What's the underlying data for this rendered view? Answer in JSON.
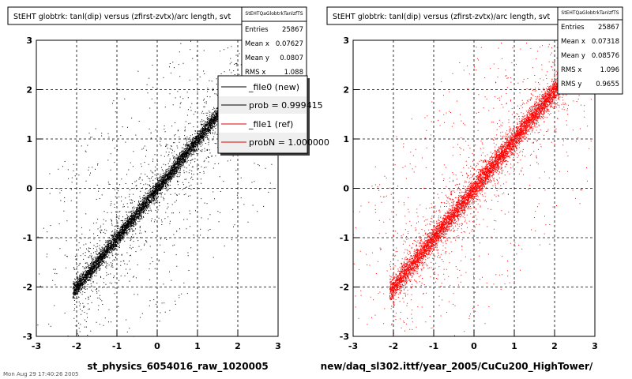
{
  "chart_data": [
    {
      "type": "scatter",
      "title": "StEHT globtrk: tanl(dip) versus (zfirst-zvtx)/arc length, svt",
      "xlabel": "st_physics_6054016_raw_1020005",
      "ylabel": "",
      "xlim": [
        -3,
        3
      ],
      "ylim": [
        -3,
        3
      ],
      "xticks": [
        "-3",
        "-2",
        "-1",
        "0",
        "1",
        "2",
        "3"
      ],
      "yticks": [
        "-3",
        "-2",
        "-1",
        "0",
        "1",
        "2",
        "3"
      ],
      "grid": true,
      "marker_color": "#000000",
      "stats": {
        "name": "StEHTQaGlobtrkTanlzfTS",
        "rows": [
          {
            "label": "Entries",
            "value": "25867"
          },
          {
            "label": "Mean x",
            "value": "0.07627"
          },
          {
            "label": "Mean y",
            "value": "0.0807"
          },
          {
            "label": "RMS x",
            "value": "1.088"
          }
        ]
      },
      "legend": {
        "position": "top-right",
        "entries": [
          {
            "label": "_file0 (new)",
            "color": "#000000"
          },
          {
            "label": "prob = 0.999415",
            "color": "#000000"
          },
          {
            "label": "_file1 (ref)",
            "color": "#dd0000"
          },
          {
            "label": "probN = 1.000000",
            "color": "#dd0000"
          }
        ]
      },
      "series": [
        {
          "relation": "y ≈ x",
          "x_range": [
            -2.1,
            2.9
          ],
          "core_rms_perp": 0.08,
          "n_points": 25867
        }
      ]
    },
    {
      "type": "scatter",
      "title": "StEHT globtrk: tanl(dip) versus (zfirst-zvtx)/arc length, svt",
      "xlabel": "new/daq_sl302.ittf/year_2005/CuCu200_HighTower/",
      "ylabel": "",
      "xlim": [
        -3,
        3
      ],
      "ylim": [
        -3,
        3
      ],
      "xticks": [
        "-3",
        "-2",
        "-1",
        "0",
        "1",
        "2",
        "3"
      ],
      "yticks": [
        "-3",
        "-2",
        "-1",
        "0",
        "1",
        "2",
        "3"
      ],
      "grid": true,
      "marker_color": "#ff0000",
      "stats": {
        "name": "StEHTQaGlobtrkTanlzfTS",
        "rows": [
          {
            "label": "Entries",
            "value": "25867"
          },
          {
            "label": "Mean x",
            "value": "0.07318"
          },
          {
            "label": "Mean y",
            "value": "0.08576"
          },
          {
            "label": "RMS x",
            "value": "1.096"
          },
          {
            "label": "RMS y",
            "value": "0.9655"
          }
        ]
      },
      "series": [
        {
          "relation": "y ≈ x",
          "x_range": [
            -2.1,
            2.9
          ],
          "core_rms_perp": 0.11,
          "n_points": 25867
        }
      ]
    }
  ],
  "footer_text": "Mon Aug 29 17:40:26 2005"
}
